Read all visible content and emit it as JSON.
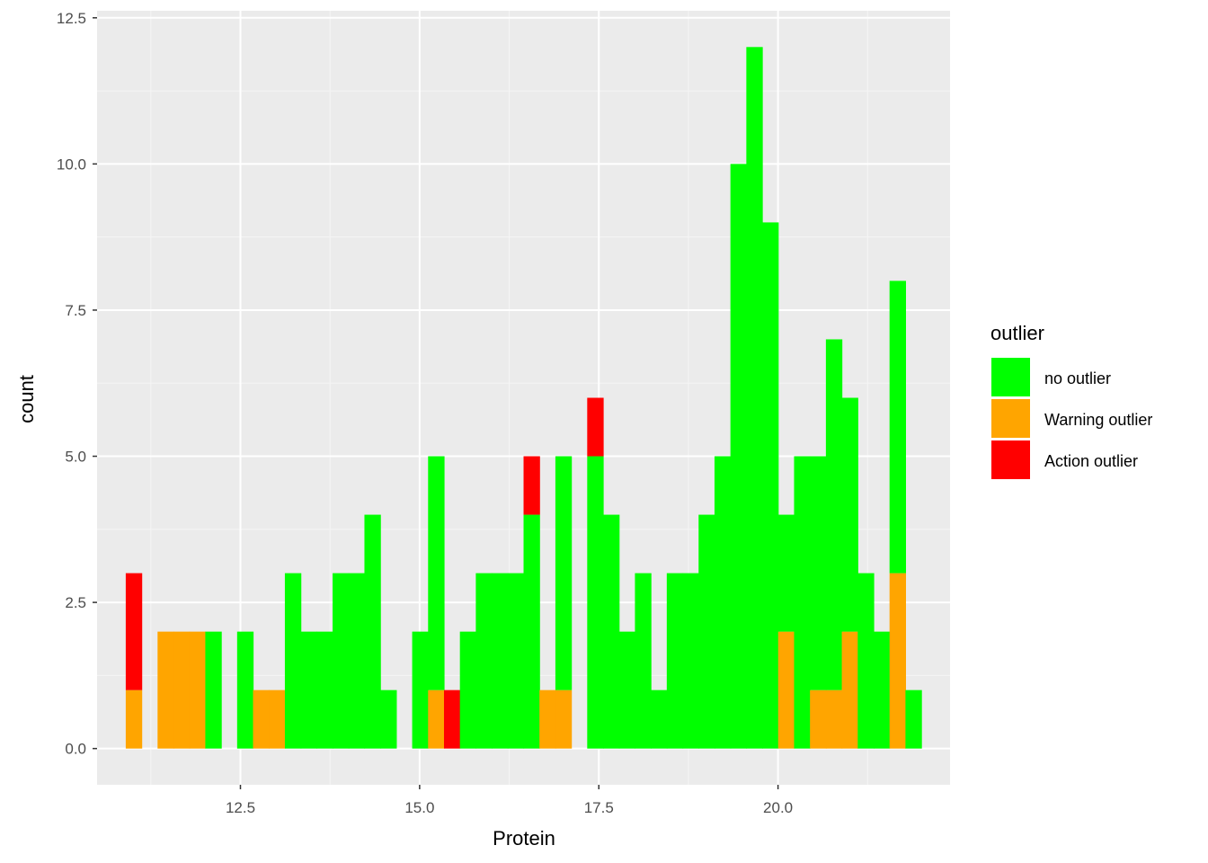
{
  "chart_data": {
    "type": "bar",
    "subtype": "stacked-histogram",
    "xlabel": "Protein",
    "ylabel": "count",
    "xlim": [
      10.5,
      22.4
    ],
    "ylim": [
      -0.62,
      12.62
    ],
    "xticks": [
      12.5,
      15.0,
      17.5,
      20.0
    ],
    "xtick_labels": [
      "12.5",
      "15.0",
      "17.5",
      "20.0"
    ],
    "yticks": [
      0.0,
      2.5,
      5.0,
      7.5,
      10.0,
      12.5
    ],
    "ytick_labels": [
      "0.0",
      "2.5",
      "5.0",
      "7.5",
      "10.0",
      "12.5"
    ],
    "bin_start": 10.9,
    "bin_width": 0.222,
    "bin_count": 50,
    "grid": true,
    "legend_position": "right",
    "legend_title": "outlier",
    "series": [
      {
        "name": "no outlier",
        "color": "#00ff00",
        "values": [
          0,
          0,
          0,
          0,
          0,
          2,
          0,
          2,
          0,
          0,
          3,
          2,
          2,
          3,
          3,
          4,
          1,
          0,
          2,
          4,
          0,
          2,
          3,
          3,
          3,
          4,
          0,
          4,
          0,
          5,
          4,
          2,
          3,
          1,
          3,
          3,
          4,
          5,
          10,
          12,
          9,
          2,
          5,
          4,
          6,
          4,
          3,
          2,
          5,
          1
        ]
      },
      {
        "name": "Warning outlier",
        "color": "#ffa500",
        "values": [
          1,
          0,
          2,
          2,
          2,
          0,
          0,
          0,
          1,
          1,
          0,
          0,
          0,
          0,
          0,
          0,
          0,
          0,
          0,
          1,
          0,
          0,
          0,
          0,
          0,
          0,
          1,
          1,
          0,
          0,
          0,
          0,
          0,
          0,
          0,
          0,
          0,
          0,
          0,
          0,
          0,
          2,
          0,
          1,
          1,
          2,
          0,
          0,
          3,
          0
        ]
      },
      {
        "name": "Action outlier",
        "color": "#ff0000",
        "values": [
          2,
          0,
          0,
          0,
          0,
          0,
          0,
          0,
          0,
          0,
          0,
          0,
          0,
          0,
          0,
          0,
          0,
          0,
          0,
          0,
          1,
          0,
          0,
          0,
          0,
          1,
          0,
          0,
          0,
          1,
          0,
          0,
          0,
          0,
          0,
          0,
          0,
          0,
          0,
          0,
          0,
          0,
          0,
          0,
          0,
          0,
          0,
          0,
          0,
          0
        ]
      }
    ]
  },
  "colors": {
    "panel_background": "#ebebeb",
    "grid_major": "#ffffff",
    "grid_minor": "#f5f5f5"
  }
}
